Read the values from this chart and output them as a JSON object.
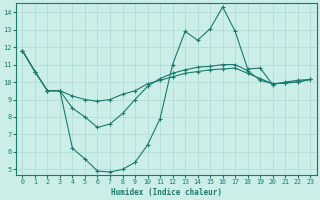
{
  "xlabel": "Humidex (Indice chaleur)",
  "bg_color": "#cceee8",
  "line_color": "#1a7a6e",
  "grid_color": "#b0ddd8",
  "xlim": [
    -0.5,
    23.5
  ],
  "ylim": [
    4.7,
    14.5
  ],
  "xticks": [
    0,
    1,
    2,
    3,
    4,
    5,
    6,
    7,
    8,
    9,
    10,
    11,
    12,
    13,
    14,
    15,
    16,
    17,
    18,
    19,
    20,
    21,
    22,
    23
  ],
  "yticks": [
    5,
    6,
    7,
    8,
    9,
    10,
    11,
    12,
    13,
    14
  ],
  "line1_x": [
    0,
    1,
    2,
    3,
    4,
    5,
    6,
    7,
    8,
    9,
    10,
    11,
    12,
    13,
    14,
    15,
    16,
    17,
    18,
    19,
    20,
    21,
    22,
    23
  ],
  "line1_y": [
    11.8,
    10.6,
    9.5,
    9.5,
    6.2,
    5.6,
    4.9,
    4.85,
    5.0,
    5.4,
    6.4,
    7.9,
    11.0,
    12.9,
    12.4,
    13.05,
    14.3,
    12.9,
    10.75,
    10.8,
    9.85,
    10.0,
    10.1,
    10.15
  ],
  "line2_x": [
    0,
    1,
    2,
    3,
    4,
    5,
    6,
    7,
    8,
    9,
    10,
    11,
    12,
    13,
    14,
    15,
    16,
    17,
    18,
    19,
    20,
    21,
    22,
    23
  ],
  "line2_y": [
    11.8,
    10.6,
    9.5,
    9.5,
    9.2,
    9.0,
    8.9,
    9.0,
    9.3,
    9.5,
    9.9,
    10.1,
    10.3,
    10.5,
    10.6,
    10.7,
    10.75,
    10.8,
    10.5,
    10.2,
    9.9,
    9.95,
    10.0,
    10.15
  ],
  "line3_x": [
    0,
    1,
    2,
    3,
    4,
    5,
    6,
    7,
    8,
    9,
    10,
    11,
    12,
    13,
    14,
    15,
    16,
    17,
    18,
    19,
    20,
    21,
    22,
    23
  ],
  "line3_y": [
    11.8,
    10.6,
    9.5,
    9.5,
    8.5,
    8.0,
    7.4,
    7.6,
    8.2,
    9.0,
    9.75,
    10.2,
    10.5,
    10.7,
    10.85,
    10.9,
    11.0,
    11.0,
    10.65,
    10.1,
    9.9,
    9.95,
    10.0,
    10.15
  ]
}
